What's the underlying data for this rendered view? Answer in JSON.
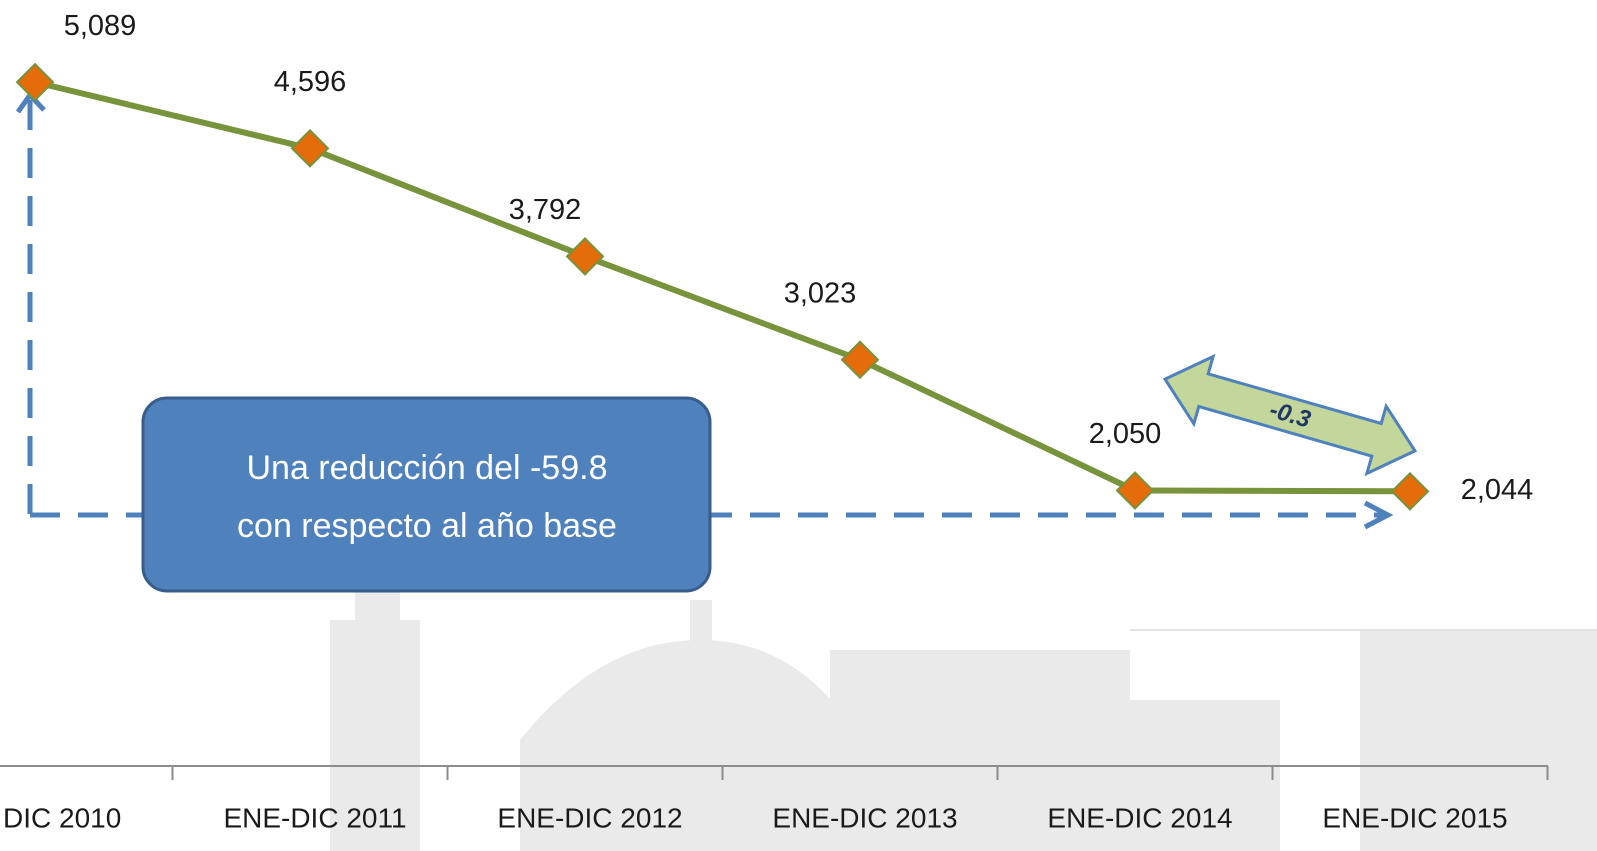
{
  "chart_data": {
    "type": "line",
    "categories": [
      "DIC 2010",
      "ENE-DIC 2011",
      "ENE-DIC 2012",
      "ENE-DIC 2013",
      "ENE-DIC 2014",
      "ENE-DIC 2015"
    ],
    "series": [
      {
        "color": "#77933c",
        "marker_color": "#e46c0a",
        "values": [
          5089,
          4596,
          3792,
          3023,
          2050,
          2044
        ],
        "value_labels": [
          "5,089",
          "4,596",
          "3,792",
          "3,023",
          "2,050",
          "2,044"
        ]
      }
    ],
    "ylim": [
      0,
      5700
    ],
    "annotations": {
      "callout": [
        "Una reducción del  -59.8",
        "con respecto al año base"
      ],
      "arrow_label": "-0.3"
    }
  }
}
